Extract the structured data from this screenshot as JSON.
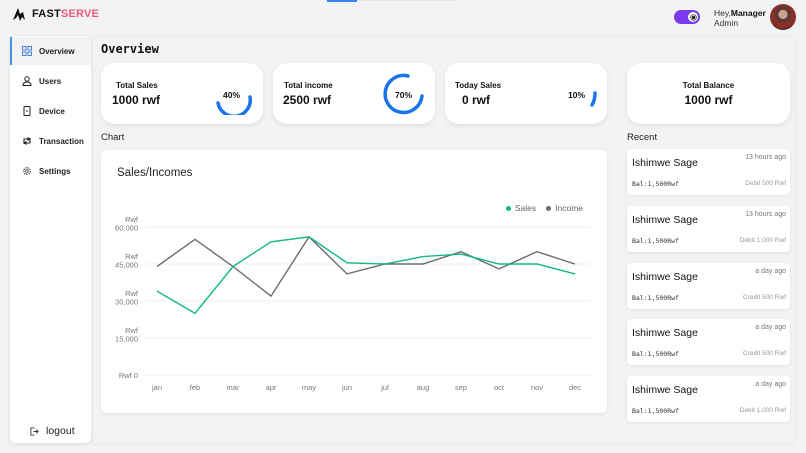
{
  "app": {
    "brand_part1": "FAST",
    "brand_part2": "SERVE",
    "brand_color": "#f0567a",
    "accent_color": "#1a73e8"
  },
  "header": {
    "greeting_prefix": "Hey,",
    "user_name": "Manager",
    "user_role": "Admin",
    "theme_toggle_on": true,
    "toggle_color": "#7c3aed"
  },
  "sidebar": {
    "items": [
      {
        "label": "Overview",
        "icon": "grid-icon",
        "active": true
      },
      {
        "label": "Users",
        "icon": "user-icon",
        "active": false
      },
      {
        "label": "Device",
        "icon": "device-icon",
        "active": false
      },
      {
        "label": "Transaction",
        "icon": "transfer-icon",
        "active": false
      },
      {
        "label": "Settings",
        "icon": "gear-icon",
        "active": false
      }
    ],
    "logout_label": "logout"
  },
  "main": {
    "page_title": "Overview",
    "stats": [
      {
        "label": "Total Sales",
        "value": "1000 rwf",
        "percent": "40%",
        "percent_value": 40
      },
      {
        "label": "Total income",
        "value": "2500 rwf",
        "percent": "70%",
        "percent_value": 70
      },
      {
        "label": "Today Sales",
        "value": "0 rwf",
        "percent": "10%",
        "percent_value": 10
      },
      {
        "label": "Total Balance",
        "value": "1000 rwf"
      }
    ],
    "chart_section_label": "Chart",
    "chart_title": "Sales/Incomes",
    "recent_section_label": "Recent",
    "recent": [
      {
        "name": "Ishimwe Sage",
        "time": "13 hours ago",
        "balance": "Bal:1,500Rwf",
        "transaction": "Debit 500 Rwf"
      },
      {
        "name": "Ishimwe Sage",
        "time": "13 hours ago",
        "balance": "Bal:1,500Rwf",
        "transaction": "Debit 1,000 Rwf"
      },
      {
        "name": "Ishimwe Sage",
        "time": "a day ago",
        "balance": "Bal:1,500Rwf",
        "transaction": "Credit 500 Rwf"
      },
      {
        "name": "Ishimwe Sage",
        "time": "a day ago",
        "balance": "Bal:1,500Rwf",
        "transaction": "Credit 500 Rwf"
      },
      {
        "name": "Ishimwe Sage",
        "time": "a day ago",
        "balance": "Bal:1,500Rwf",
        "transaction": "Debit 1,000 Rwf"
      }
    ]
  },
  "chart_data": {
    "type": "line",
    "title": "Sales/Incomes",
    "xlabel": "",
    "ylabel": "Rwf",
    "categories": [
      "jan",
      "feb",
      "mar",
      "apr",
      "may",
      "jun",
      "jul",
      "aug",
      "sep",
      "oct",
      "nov",
      "dec"
    ],
    "series": [
      {
        "name": "Sales",
        "color": "#10b981",
        "values": [
          34000,
          25000,
          44000,
          54000,
          56000,
          45500,
          45000,
          48000,
          49000,
          45000,
          45000,
          41000
        ]
      },
      {
        "name": "Income",
        "color": "#6b6b78",
        "values": [
          44000,
          55000,
          44000,
          32000,
          56000,
          41000,
          45000,
          45000,
          50000,
          43000,
          50000,
          45000
        ]
      }
    ],
    "yticks": [
      "Rwf 0",
      "Rwf 15,000",
      "Rwf 30,000",
      "Rwf 45,000",
      "Rwf 60,000"
    ],
    "ylim": [
      0,
      60000
    ],
    "grid": true,
    "legend_position": "top-right"
  }
}
